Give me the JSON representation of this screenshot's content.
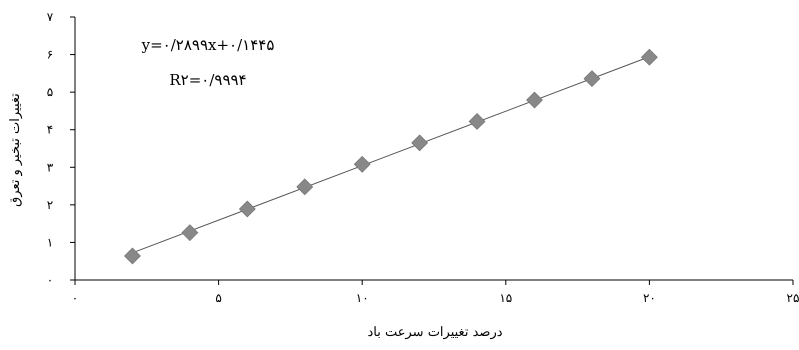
{
  "chart_data": {
    "type": "scatter",
    "title": "",
    "xlabel": "درصد تغییرات سرعت باد",
    "ylabel": "تغییرات تبخیر و تعرق",
    "xlim": [
      0,
      25
    ],
    "ylim": [
      0,
      7
    ],
    "x_ticks": [
      {
        "value": 0,
        "label": "۰"
      },
      {
        "value": 5,
        "label": "۵"
      },
      {
        "value": 10,
        "label": "۱۰"
      },
      {
        "value": 15,
        "label": "۱۵"
      },
      {
        "value": 20,
        "label": "۲۰"
      },
      {
        "value": 25,
        "label": "۲۵"
      }
    ],
    "y_ticks": [
      {
        "value": 0,
        "label": "۰"
      },
      {
        "value": 1,
        "label": "۱"
      },
      {
        "value": 2,
        "label": "۲"
      },
      {
        "value": 3,
        "label": "۳"
      },
      {
        "value": 4,
        "label": "۴"
      },
      {
        "value": 5,
        "label": "۵"
      },
      {
        "value": 6,
        "label": "۶"
      },
      {
        "value": 7,
        "label": "۷"
      }
    ],
    "series": [
      {
        "marker": "diamond",
        "color": "#888888",
        "points": [
          {
            "x": 2,
            "y": 0.64
          },
          {
            "x": 4,
            "y": 1.26
          },
          {
            "x": 6,
            "y": 1.89
          },
          {
            "x": 8,
            "y": 2.48
          },
          {
            "x": 10,
            "y": 3.08
          },
          {
            "x": 12,
            "y": 3.65
          },
          {
            "x": 14,
            "y": 4.22
          },
          {
            "x": 16,
            "y": 4.79
          },
          {
            "x": 18,
            "y": 5.36
          },
          {
            "x": 20,
            "y": 5.93
          }
        ]
      }
    ],
    "trendline": {
      "type": "linear",
      "slope": 0.2899,
      "intercept": 0.1445,
      "x_range": [
        2,
        20
      ],
      "color": "#555555"
    },
    "annotations": {
      "equation": "y=۰/۲۸۹۹x+۰/۱۴۴۵",
      "r_squared": "R۲=۰/۹۹۹۴"
    },
    "grid": false,
    "legend": "none"
  }
}
